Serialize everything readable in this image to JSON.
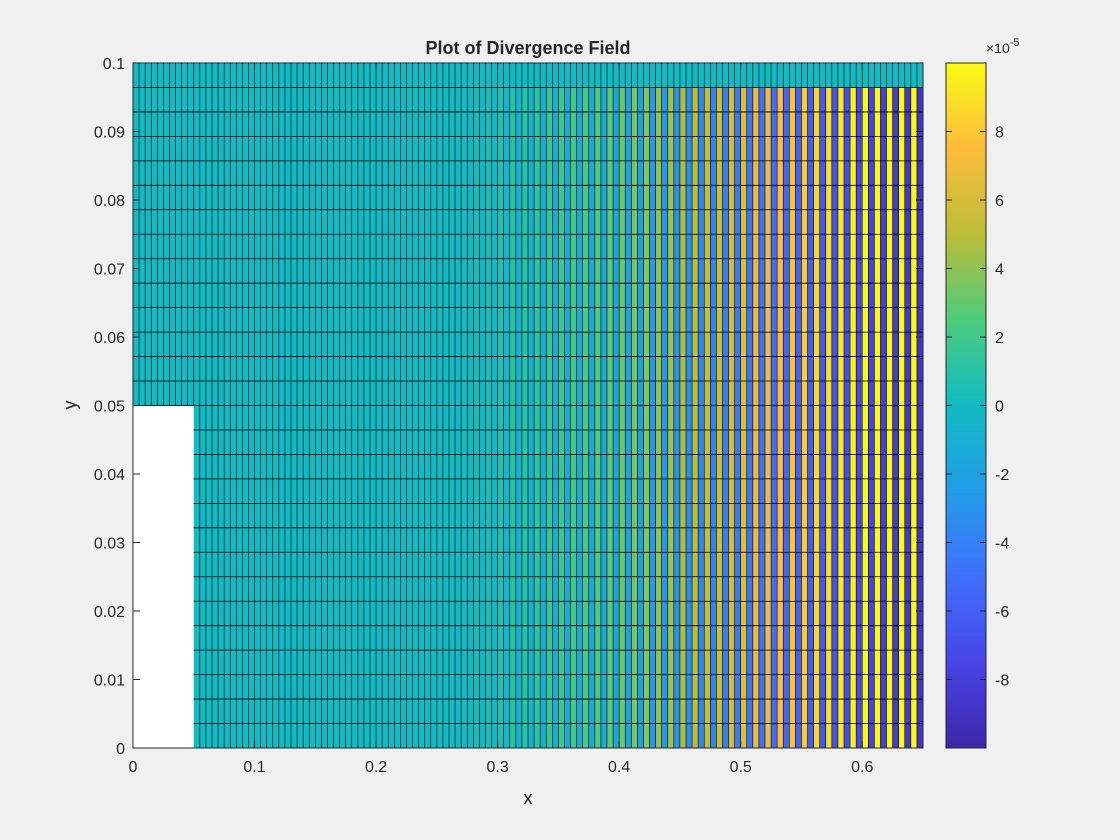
{
  "chart_data": {
    "type": "heatmap",
    "title": "Plot of Divergence Field",
    "xlabel": "x",
    "ylabel": "y",
    "xlim": [
      0,
      0.65
    ],
    "ylim": [
      0,
      0.1
    ],
    "xticks": [
      0,
      0.1,
      0.2,
      0.3,
      0.4,
      0.5,
      0.6
    ],
    "xtick_labels": [
      "0",
      "0.1",
      "0.2",
      "0.3",
      "0.4",
      "0.5",
      "0.6"
    ],
    "yticks": [
      0,
      0.01,
      0.02,
      0.03,
      0.04,
      0.05,
      0.06,
      0.07,
      0.08,
      0.09,
      0.1
    ],
    "ytick_labels": [
      "0",
      "0.01",
      "0.02",
      "0.03",
      "0.04",
      "0.05",
      "0.06",
      "0.07",
      "0.08",
      "0.09",
      "0.1"
    ],
    "masked_region": {
      "x": [
        0,
        0.05
      ],
      "y": [
        0,
        0.05
      ]
    },
    "grid": {
      "x_cells": 130,
      "y_cells": 28,
      "description_of_field": "near 0 for x < 0.3; alternating columns with growing amplitude toward x = 0.65; top row ~0"
    },
    "colorbar": {
      "colormap": "parula",
      "clim": [
        -0.0001,
        0.0001
      ],
      "exponent_label": "×10",
      "exponent": "-5",
      "ticks": [
        -8,
        -6,
        -4,
        -2,
        0,
        2,
        4,
        6,
        8
      ],
      "tick_labels": [
        "-8",
        "-6",
        "-4",
        "-2",
        "0",
        "2",
        "4",
        "6",
        "8"
      ]
    },
    "colors": {
      "background": "#f0f0f0",
      "axes_background": "#ffffff",
      "cell_edge": "#000000"
    }
  }
}
